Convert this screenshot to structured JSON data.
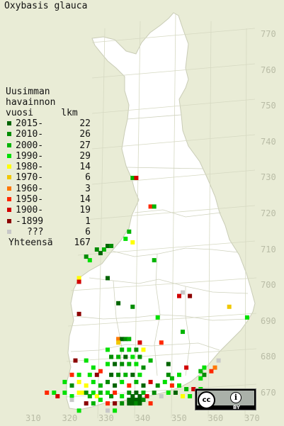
{
  "title": "Oxybasis glauca",
  "legend": {
    "heading_lines": [
      "Uusimman",
      "havainnon",
      "vuosi     lkm"
    ],
    "rows": [
      {
        "label": "2015-",
        "count": "22",
        "color": "#006400"
      },
      {
        "label": "2010-",
        "count": "26",
        "color": "#008c00"
      },
      {
        "label": "2000-",
        "count": "27",
        "color": "#00b400"
      },
      {
        "label": "1990-",
        "count": "29",
        "color": "#00e000"
      },
      {
        "label": "1980-",
        "count": "14",
        "color": "#ffff00"
      },
      {
        "label": "1970-",
        "count": "6",
        "color": "#f0c800"
      },
      {
        "label": "1960-",
        "count": "3",
        "color": "#ff7800"
      },
      {
        "label": "1950-",
        "count": "14",
        "color": "#ff2800"
      },
      {
        "label": "1900-",
        "count": "19",
        "color": "#d20000"
      },
      {
        "label": "-1899",
        "count": "1",
        "color": "#8c0000"
      },
      {
        "label": "???",
        "count": "6",
        "color": "#c8c8c8"
      }
    ],
    "total_label": "Yhteensä",
    "total_count": "167"
  },
  "y_ticks": [
    "770",
    "760",
    "750",
    "740",
    "730",
    "720",
    "710",
    "700",
    "690",
    "680",
    "670"
  ],
  "x_ticks": [
    "310",
    "320",
    "330",
    "340",
    "350",
    "360",
    "370"
  ],
  "license": {
    "cc": "cc",
    "by": "BY"
  },
  "colors": {
    "background": "#e9ecd6",
    "land": "#ffffff",
    "grid": "#d6d9c2",
    "border": "#c9ccb6"
  },
  "observations": [
    {
      "e": 337,
      "n": 730,
      "p": 2
    },
    {
      "e": 338,
      "n": 730,
      "p": 8
    },
    {
      "e": 342,
      "n": 722,
      "p": 7
    },
    {
      "e": 343,
      "n": 722,
      "p": 2
    },
    {
      "e": 336,
      "n": 715,
      "p": 2
    },
    {
      "e": 335,
      "n": 713,
      "p": 3
    },
    {
      "e": 337,
      "n": 712,
      "p": 4
    },
    {
      "e": 330,
      "n": 711,
      "p": 0
    },
    {
      "e": 331,
      "n": 711,
      "p": 1
    },
    {
      "e": 329,
      "n": 710,
      "p": 2
    },
    {
      "e": 327,
      "n": 710,
      "p": 1
    },
    {
      "e": 328,
      "n": 709,
      "p": 0
    },
    {
      "e": 325,
      "n": 707,
      "p": 3
    },
    {
      "e": 324,
      "n": 708,
      "p": 1
    },
    {
      "e": 343,
      "n": 707,
      "p": 2
    },
    {
      "e": 322,
      "n": 702,
      "p": 4
    },
    {
      "e": 322,
      "n": 701,
      "p": 8
    },
    {
      "e": 330,
      "n": 702,
      "p": 0
    },
    {
      "e": 351,
      "n": 698,
      "p": 10
    },
    {
      "e": 350,
      "n": 697,
      "p": 8
    },
    {
      "e": 353,
      "n": 697,
      "p": 9
    },
    {
      "e": 333,
      "n": 695,
      "p": 0
    },
    {
      "e": 337,
      "n": 694,
      "p": 1
    },
    {
      "e": 344,
      "n": 691,
      "p": 3
    },
    {
      "e": 364,
      "n": 694,
      "p": 5
    },
    {
      "e": 369,
      "n": 691,
      "p": 3
    },
    {
      "e": 322,
      "n": 692,
      "p": 9
    },
    {
      "e": 361,
      "n": 679,
      "p": 10
    },
    {
      "e": 360,
      "n": 677,
      "p": 6
    },
    {
      "e": 359,
      "n": 676,
      "p": 7
    },
    {
      "e": 356,
      "n": 676,
      "p": 2
    },
    {
      "e": 357,
      "n": 677,
      "p": 3
    },
    {
      "e": 333,
      "n": 685,
      "p": 6
    },
    {
      "e": 334,
      "n": 685,
      "p": 0
    },
    {
      "e": 335,
      "n": 685,
      "p": 1
    },
    {
      "e": 336,
      "n": 685,
      "p": 2
    },
    {
      "e": 333,
      "n": 684,
      "p": 5
    },
    {
      "e": 339,
      "n": 684,
      "p": 8
    },
    {
      "e": 345,
      "n": 684,
      "p": 7
    },
    {
      "e": 351,
      "n": 687,
      "p": 2
    },
    {
      "e": 330,
      "n": 682,
      "p": 3
    },
    {
      "e": 334,
      "n": 682,
      "p": 2
    },
    {
      "e": 336,
      "n": 682,
      "p": 3
    },
    {
      "e": 338,
      "n": 682,
      "p": 1
    },
    {
      "e": 340,
      "n": 682,
      "p": 4
    },
    {
      "e": 331,
      "n": 680,
      "p": 1
    },
    {
      "e": 333,
      "n": 680,
      "p": 2
    },
    {
      "e": 335,
      "n": 680,
      "p": 0
    },
    {
      "e": 337,
      "n": 680,
      "p": 3
    },
    {
      "e": 339,
      "n": 680,
      "p": 1
    },
    {
      "e": 342,
      "n": 679,
      "p": 2
    },
    {
      "e": 330,
      "n": 678,
      "p": 3
    },
    {
      "e": 332,
      "n": 678,
      "p": 0
    },
    {
      "e": 334,
      "n": 678,
      "p": 1
    },
    {
      "e": 336,
      "n": 678,
      "p": 2
    },
    {
      "e": 338,
      "n": 678,
      "p": 3
    },
    {
      "e": 340,
      "n": 677,
      "p": 1
    },
    {
      "e": 347,
      "n": 678,
      "p": 0
    },
    {
      "e": 352,
      "n": 677,
      "p": 8
    },
    {
      "e": 324,
      "n": 679,
      "p": 3
    },
    {
      "e": 326,
      "n": 677,
      "p": 3
    },
    {
      "e": 328,
      "n": 676,
      "p": 7
    },
    {
      "e": 321,
      "n": 679,
      "p": 9
    },
    {
      "e": 320,
      "n": 675,
      "p": 7
    },
    {
      "e": 322,
      "n": 675,
      "p": 3
    },
    {
      "e": 325,
      "n": 675,
      "p": 3
    },
    {
      "e": 327,
      "n": 675,
      "p": 9
    },
    {
      "e": 331,
      "n": 675,
      "p": 0
    },
    {
      "e": 333,
      "n": 675,
      "p": 1
    },
    {
      "e": 335,
      "n": 675,
      "p": 2
    },
    {
      "e": 337,
      "n": 675,
      "p": 0
    },
    {
      "e": 339,
      "n": 675,
      "p": 3
    },
    {
      "e": 347,
      "n": 675,
      "p": 1
    },
    {
      "e": 348,
      "n": 674,
      "p": 2
    },
    {
      "e": 350,
      "n": 675,
      "p": 3
    },
    {
      "e": 356,
      "n": 674,
      "p": 3
    },
    {
      "e": 357,
      "n": 675,
      "p": 1
    },
    {
      "e": 318,
      "n": 673,
      "p": 3
    },
    {
      "e": 320,
      "n": 672,
      "p": 1
    },
    {
      "e": 322,
      "n": 673,
      "p": 4
    },
    {
      "e": 324,
      "n": 672,
      "p": 4
    },
    {
      "e": 326,
      "n": 673,
      "p": 3
    },
    {
      "e": 328,
      "n": 672,
      "p": 2
    },
    {
      "e": 330,
      "n": 673,
      "p": 1
    },
    {
      "e": 332,
      "n": 672,
      "p": 0
    },
    {
      "e": 334,
      "n": 673,
      "p": 3
    },
    {
      "e": 336,
      "n": 672,
      "p": 7
    },
    {
      "e": 338,
      "n": 673,
      "p": 2
    },
    {
      "e": 340,
      "n": 672,
      "p": 0
    },
    {
      "e": 342,
      "n": 673,
      "p": 8
    },
    {
      "e": 344,
      "n": 672,
      "p": 1
    },
    {
      "e": 346,
      "n": 673,
      "p": 3
    },
    {
      "e": 348,
      "n": 672,
      "p": 7
    },
    {
      "e": 350,
      "n": 672,
      "p": 3
    },
    {
      "e": 352,
      "n": 671,
      "p": 2
    },
    {
      "e": 354,
      "n": 671,
      "p": 8
    },
    {
      "e": 356,
      "n": 671,
      "p": 3
    },
    {
      "e": 313,
      "n": 670,
      "p": 7
    },
    {
      "e": 315,
      "n": 670,
      "p": 3
    },
    {
      "e": 316,
      "n": 669,
      "p": 8
    },
    {
      "e": 318,
      "n": 670,
      "p": 3
    },
    {
      "e": 320,
      "n": 669,
      "p": 3
    },
    {
      "e": 322,
      "n": 670,
      "p": 4
    },
    {
      "e": 323,
      "n": 670,
      "p": 4
    },
    {
      "e": 324,
      "n": 670,
      "p": 1
    },
    {
      "e": 325,
      "n": 669,
      "p": 2
    },
    {
      "e": 326,
      "n": 670,
      "p": 3
    },
    {
      "e": 327,
      "n": 669,
      "p": 4
    },
    {
      "e": 328,
      "n": 670,
      "p": 2
    },
    {
      "e": 330,
      "n": 670,
      "p": 3
    },
    {
      "e": 331,
      "n": 669,
      "p": 1
    },
    {
      "e": 332,
      "n": 670,
      "p": 7
    },
    {
      "e": 334,
      "n": 669,
      "p": 3
    },
    {
      "e": 336,
      "n": 670,
      "p": 1
    },
    {
      "e": 337,
      "n": 669,
      "p": 0
    },
    {
      "e": 338,
      "n": 670,
      "p": 0
    },
    {
      "e": 339,
      "n": 669,
      "p": 0
    },
    {
      "e": 340,
      "n": 670,
      "p": 2
    },
    {
      "e": 341,
      "n": 669,
      "p": 8
    },
    {
      "e": 343,
      "n": 670,
      "p": 1
    },
    {
      "e": 345,
      "n": 669,
      "p": 10
    },
    {
      "e": 347,
      "n": 670,
      "p": 3
    },
    {
      "e": 349,
      "n": 670,
      "p": 0
    },
    {
      "e": 351,
      "n": 669,
      "p": 4
    },
    {
      "e": 353,
      "n": 669,
      "p": 3
    },
    {
      "e": 355,
      "n": 670,
      "p": 3
    },
    {
      "e": 336,
      "n": 668,
      "p": 0
    },
    {
      "e": 337,
      "n": 668,
      "p": 0
    },
    {
      "e": 338,
      "n": 668,
      "p": 0
    },
    {
      "e": 339,
      "n": 668,
      "p": 0
    },
    {
      "e": 340,
      "n": 668,
      "p": 1
    },
    {
      "e": 336,
      "n": 667,
      "p": 0
    },
    {
      "e": 337,
      "n": 667,
      "p": 0
    },
    {
      "e": 338,
      "n": 667,
      "p": 1
    },
    {
      "e": 339,
      "n": 667,
      "p": 0
    },
    {
      "e": 324,
      "n": 667,
      "p": 9
    },
    {
      "e": 326,
      "n": 667,
      "p": 2
    },
    {
      "e": 328,
      "n": 668,
      "p": 3
    },
    {
      "e": 330,
      "n": 667,
      "p": 7
    },
    {
      "e": 332,
      "n": 667,
      "p": 9
    },
    {
      "e": 334,
      "n": 667,
      "p": 1
    },
    {
      "e": 330,
      "n": 665,
      "p": 10
    },
    {
      "e": 332,
      "n": 665,
      "p": 3
    },
    {
      "e": 320,
      "n": 668,
      "p": 10
    },
    {
      "e": 322,
      "n": 665,
      "p": 3
    },
    {
      "e": 342,
      "n": 667,
      "p": 7
    }
  ]
}
